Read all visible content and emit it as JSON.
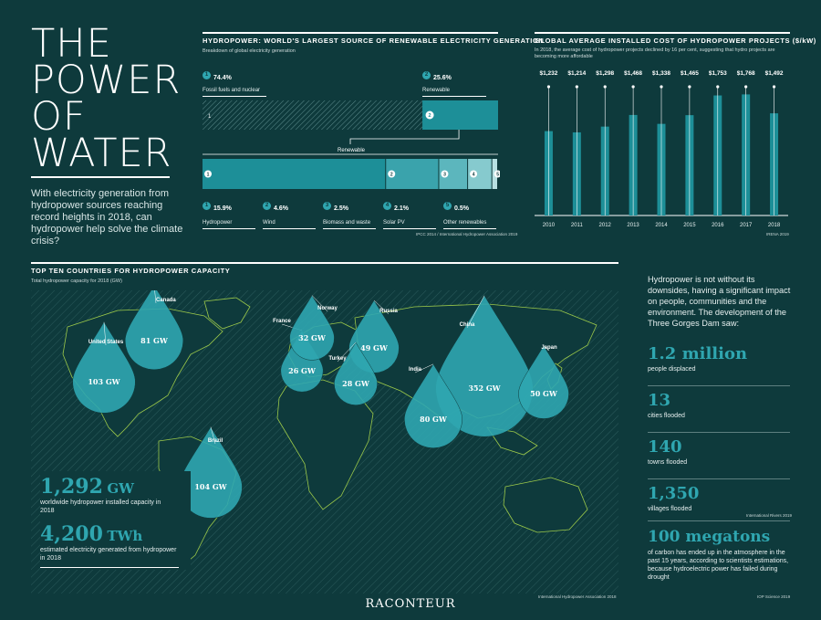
{
  "title_lines": [
    "THE",
    "POWER",
    "OF",
    "WATER"
  ],
  "intro": "With electricity generation from hydropower sources reaching record heights in 2018, can hydropower help solve the climate crisis?",
  "breakdown": {
    "heading": "HYDROPOWER: WORLD'S LARGEST SOURCE OF RENEWABLE ELECTRICITY GENERATION",
    "subtitle": "Breakdown of global electricity generation",
    "top": [
      {
        "num": "1",
        "pct": "74.4%",
        "label": "Fossil fuels and nuclear",
        "value": 74.4
      },
      {
        "num": "2",
        "pct": "25.6%",
        "label": "Renewable",
        "value": 25.6
      }
    ],
    "renewable_label": "Renewable",
    "renewables": [
      {
        "num": "1",
        "pct": "15.9%",
        "label": "Hydropower",
        "value": 15.9
      },
      {
        "num": "2",
        "pct": "4.6%",
        "label": "Wind",
        "value": 4.6
      },
      {
        "num": "3",
        "pct": "2.5%",
        "label": "Biomass and waste",
        "value": 2.5
      },
      {
        "num": "4",
        "pct": "2.1%",
        "label": "Solar PV",
        "value": 2.1
      },
      {
        "num": "5",
        "pct": "0.5%",
        "label": "Other renewables",
        "value": 0.5
      }
    ],
    "source": "IPCC 2014 / International Hydropower Association 2019"
  },
  "cost": {
    "heading": "GLOBAL AVERAGE INSTALLED COST OF HYDROPOWER PROJECTS ($/kW)",
    "subtitle": "In 2018, the average cost of hydropower projects declined by 16 per cent, suggesting that hydro projects are becoming more affordable",
    "source": "IRENA 2019"
  },
  "chart_data": {
    "type": "bar",
    "title": "GLOBAL AVERAGE INSTALLED COST OF HYDROPOWER PROJECTS ($/kW)",
    "categories": [
      "2010",
      "2011",
      "2012",
      "2013",
      "2014",
      "2015",
      "2016",
      "2017",
      "2018"
    ],
    "values": [
      1232,
      1214,
      1298,
      1468,
      1338,
      1465,
      1753,
      1768,
      1492
    ],
    "value_labels": [
      "$1,232",
      "$1,214",
      "$1,298",
      "$1,468",
      "$1,338",
      "$1,465",
      "$1,753",
      "$1,768",
      "$1,492"
    ],
    "ylim": [
      0,
      2000
    ]
  },
  "map": {
    "heading": "TOP TEN COUNTRIES FOR HYDROPOWER CAPACITY",
    "subtitle": "Total hydropower capacity for 2018 (GW)",
    "countries": [
      {
        "name": "Canada",
        "label": "81 GW",
        "value": 81
      },
      {
        "name": "United States",
        "label": "103 GW",
        "value": 103
      },
      {
        "name": "France",
        "label": "26 GW",
        "value": 26
      },
      {
        "name": "Norway",
        "label": "32 GW",
        "value": 32
      },
      {
        "name": "Russia",
        "label": "49 GW",
        "value": 49
      },
      {
        "name": "Turkey",
        "label": "28 GW",
        "value": 28
      },
      {
        "name": "China",
        "label": "352 GW",
        "value": 352
      },
      {
        "name": "India",
        "label": "80 GW",
        "value": 80
      },
      {
        "name": "Japan",
        "label": "50 GW",
        "value": 50
      },
      {
        "name": "Brazil",
        "label": "104 GW",
        "value": 104
      }
    ],
    "installed_value": "1,292",
    "installed_unit": "GW",
    "installed_desc": "worldwide hydropower installed capacity in 2018",
    "generated_value": "4,200",
    "generated_unit": "TWh",
    "generated_desc": "estimated electricity generated from hydropower in 2018",
    "source": "International Hydropower Association 2018"
  },
  "downsides": {
    "intro": "Hydropower is not without its downsides, having a significant impact on people, communities and the environment. The development of the Three Gorges Dam saw:",
    "stats": [
      {
        "value": "1.2 million",
        "desc": "people displaced"
      },
      {
        "value": "13",
        "desc": "cities flooded"
      },
      {
        "value": "140",
        "desc": "towns flooded"
      },
      {
        "value": "1,350",
        "desc": "villages flooded"
      }
    ],
    "source1": "International Rivers 2019",
    "carbon_value": "100 megatons",
    "carbon_desc": "of carbon has ended up in the atmosphere in the past 15 years, according to scientists estimations, because hydroelectric power has failed during drought",
    "source2": "IOP Science 2019"
  },
  "brand": "RACONTEUR",
  "colors": {
    "background": "#0e3a3c",
    "accent": "#2fa6b0",
    "bar": "#1d8f98"
  }
}
